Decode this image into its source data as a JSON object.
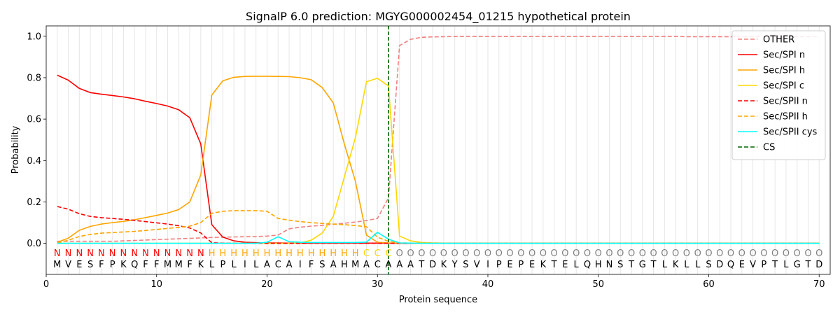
{
  "chart_data": {
    "type": "line",
    "title": "SignalP 6.0 prediction: MGYG000002454_01215 hypothetical protein",
    "xlabel": "Protein sequence",
    "ylabel": "Probability",
    "xlim": [
      0,
      71
    ],
    "ylim": [
      -0.15,
      1.05
    ],
    "xticks": [
      0,
      10,
      20,
      30,
      40,
      50,
      60,
      70
    ],
    "yticks": [
      0.0,
      0.2,
      0.4,
      0.6,
      0.8,
      1.0
    ],
    "grid": "vertical lines at each residue",
    "legend": "top-right",
    "cs_position": 31,
    "sequence": [
      "M",
      "V",
      "E",
      "S",
      "F",
      "P",
      "K",
      "Q",
      "F",
      "F",
      "M",
      "M",
      "F",
      "K",
      "L",
      "P",
      "L",
      "I",
      "L",
      "A",
      "C",
      "A",
      "I",
      "F",
      "S",
      "A",
      "H",
      "M",
      "A",
      "C",
      "A",
      "A",
      "A",
      "T",
      "D",
      "K",
      "Y",
      "S",
      "V",
      "I",
      "P",
      "E",
      "P",
      "E",
      "K",
      "T",
      "E",
      "L",
      "Q",
      "H",
      "N",
      "S",
      "T",
      "G",
      "T",
      "L",
      "K",
      "L",
      "L",
      "S",
      "D",
      "Q",
      "E",
      "V",
      "P",
      "T",
      "L",
      "G",
      "T",
      "D"
    ],
    "labels": [
      "N",
      "N",
      "N",
      "N",
      "N",
      "N",
      "N",
      "N",
      "N",
      "N",
      "N",
      "N",
      "N",
      "N",
      "H",
      "H",
      "H",
      "H",
      "H",
      "H",
      "H",
      "H",
      "H",
      "H",
      "H",
      "H",
      "H",
      "H",
      "C",
      "C",
      "C",
      "O",
      "O",
      "O",
      "O",
      "O",
      "O",
      "O",
      "O",
      "O",
      "O",
      "O",
      "O",
      "O",
      "O",
      "O",
      "O",
      "O",
      "O",
      "O",
      "O",
      "O",
      "O",
      "O",
      "O",
      "O",
      "O",
      "O",
      "O",
      "O",
      "O",
      "O",
      "O",
      "O",
      "O",
      "O",
      "O",
      "O",
      "O",
      "O"
    ],
    "label_colors": {
      "N": "#ff0000",
      "H": "#ffa500",
      "C": "#ffd700",
      "O": "#808080"
    },
    "series": [
      {
        "name": "OTHER",
        "color": "#f08080",
        "dash": "dashed",
        "values": [
          0.01,
          0.01,
          0.01,
          0.01,
          0.01,
          0.01,
          0.012,
          0.014,
          0.016,
          0.018,
          0.02,
          0.022,
          0.024,
          0.026,
          0.028,
          0.03,
          0.031,
          0.032,
          0.033,
          0.035,
          0.04,
          0.07,
          0.078,
          0.083,
          0.087,
          0.092,
          0.097,
          0.103,
          0.11,
          0.12,
          0.22,
          0.955,
          0.985,
          0.995,
          0.997,
          0.998,
          0.999,
          0.999,
          0.999,
          0.999,
          0.999,
          0.999,
          0.999,
          0.999,
          0.999,
          0.999,
          0.999,
          0.999,
          0.999,
          0.999,
          0.999,
          0.999,
          0.999,
          0.999,
          0.999,
          0.999,
          0.999,
          0.998,
          0.998,
          0.998,
          0.998,
          0.998,
          0.998,
          0.998,
          0.998,
          0.998,
          0.998,
          0.998,
          0.998,
          0.998
        ]
      },
      {
        "name": "Sec/SPI n",
        "color": "#ff0000",
        "dash": "solid",
        "values": [
          0.812,
          0.788,
          0.748,
          0.728,
          0.72,
          0.714,
          0.707,
          0.698,
          0.686,
          0.675,
          0.663,
          0.645,
          0.607,
          0.48,
          0.09,
          0.03,
          0.012,
          0.005,
          0.003,
          0.002,
          0.002,
          0.001,
          0.001,
          0.001,
          0.001,
          0.001,
          0.001,
          0.001,
          0.001,
          0.001,
          0.001,
          0.0,
          0.0,
          0.0,
          0.0,
          0.0,
          0.0,
          0.0,
          0.0,
          0.0,
          0.0,
          0.0,
          0.0,
          0.0,
          0.0,
          0.0,
          0.0,
          0.0,
          0.0,
          0.0,
          0.0,
          0.0,
          0.0,
          0.0,
          0.0,
          0.0,
          0.0,
          0.0,
          0.0,
          0.0,
          0.0,
          0.0,
          0.0,
          0.0,
          0.0,
          0.0,
          0.0,
          0.0,
          0.0,
          0.0
        ]
      },
      {
        "name": "Sec/SPI h",
        "color": "#ffa500",
        "dash": "solid",
        "values": [
          0.005,
          0.025,
          0.063,
          0.082,
          0.093,
          0.1,
          0.106,
          0.114,
          0.124,
          0.135,
          0.146,
          0.163,
          0.2,
          0.33,
          0.716,
          0.785,
          0.802,
          0.806,
          0.807,
          0.807,
          0.806,
          0.805,
          0.8,
          0.79,
          0.752,
          0.678,
          0.48,
          0.3,
          0.04,
          0.005,
          0.002,
          0.001,
          0.001,
          0.0,
          0.0,
          0.0,
          0.0,
          0.0,
          0.0,
          0.0,
          0.0,
          0.0,
          0.0,
          0.0,
          0.0,
          0.0,
          0.0,
          0.0,
          0.0,
          0.0,
          0.0,
          0.0,
          0.0,
          0.0,
          0.0,
          0.0,
          0.0,
          0.0,
          0.0,
          0.0,
          0.0,
          0.0,
          0.0,
          0.0,
          0.0,
          0.0,
          0.0,
          0.0,
          0.0,
          0.0
        ]
      },
      {
        "name": "Sec/SPI c",
        "color": "#ffd700",
        "dash": "solid",
        "values": [
          0.0,
          0.0,
          0.0,
          0.0,
          0.0,
          0.0,
          0.0,
          0.0,
          0.0,
          0.0,
          0.0,
          0.0,
          0.0,
          0.0,
          0.0,
          0.0,
          0.0,
          0.0,
          0.0,
          0.0,
          0.0,
          0.0,
          0.002,
          0.015,
          0.05,
          0.13,
          0.32,
          0.51,
          0.78,
          0.797,
          0.76,
          0.035,
          0.012,
          0.004,
          0.002,
          0.001,
          0.0,
          0.0,
          0.0,
          0.0,
          0.0,
          0.0,
          0.0,
          0.0,
          0.0,
          0.0,
          0.0,
          0.0,
          0.0,
          0.0,
          0.0,
          0.0,
          0.0,
          0.0,
          0.0,
          0.0,
          0.0,
          0.0,
          0.0,
          0.0,
          0.0,
          0.0,
          0.0,
          0.0,
          0.0,
          0.0,
          0.0,
          0.0,
          0.0,
          0.0
        ]
      },
      {
        "name": "Sec/SPII n",
        "color": "#ff0000",
        "dash": "dashed",
        "values": [
          0.178,
          0.165,
          0.143,
          0.13,
          0.124,
          0.12,
          0.116,
          0.111,
          0.105,
          0.099,
          0.093,
          0.085,
          0.074,
          0.05,
          0.003,
          0.001,
          0.0,
          0.0,
          0.0,
          0.0,
          0.0,
          0.0,
          0.0,
          0.0,
          0.0,
          0.0,
          0.0,
          0.0,
          0.0,
          0.0,
          0.0,
          0.0,
          0.0,
          0.0,
          0.0,
          0.0,
          0.0,
          0.0,
          0.0,
          0.0,
          0.0,
          0.0,
          0.0,
          0.0,
          0.0,
          0.0,
          0.0,
          0.0,
          0.0,
          0.0,
          0.0,
          0.0,
          0.0,
          0.0,
          0.0,
          0.0,
          0.0,
          0.0,
          0.0,
          0.0,
          0.0,
          0.0,
          0.0,
          0.0,
          0.0,
          0.0,
          0.0,
          0.0,
          0.0,
          0.0
        ]
      },
      {
        "name": "Sec/SPII h",
        "color": "#ffa500",
        "dash": "dashed",
        "values": [
          0.002,
          0.015,
          0.033,
          0.043,
          0.049,
          0.052,
          0.055,
          0.058,
          0.062,
          0.067,
          0.072,
          0.077,
          0.083,
          0.1,
          0.145,
          0.155,
          0.158,
          0.158,
          0.158,
          0.155,
          0.12,
          0.112,
          0.105,
          0.1,
          0.096,
          0.093,
          0.09,
          0.086,
          0.08,
          0.03,
          0.01,
          0.002,
          0.001,
          0.0,
          0.0,
          0.0,
          0.0,
          0.0,
          0.0,
          0.0,
          0.0,
          0.0,
          0.0,
          0.0,
          0.0,
          0.0,
          0.0,
          0.0,
          0.0,
          0.0,
          0.0,
          0.0,
          0.0,
          0.0,
          0.0,
          0.0,
          0.0,
          0.0,
          0.0,
          0.0,
          0.0,
          0.0,
          0.0,
          0.0,
          0.0,
          0.0,
          0.0,
          0.0,
          0.0,
          0.0
        ]
      },
      {
        "name": "Sec/SPII cys",
        "color": "#00ffff",
        "dash": "solid",
        "values": [
          0.0,
          0.0,
          0.0,
          0.0,
          0.0,
          0.0,
          0.0,
          0.0,
          0.0,
          0.0,
          0.0,
          0.0,
          0.0,
          0.0,
          0.0,
          0.0,
          0.0,
          0.0,
          0.0,
          0.005,
          0.032,
          0.008,
          0.005,
          0.004,
          0.004,
          0.004,
          0.004,
          0.004,
          0.006,
          0.053,
          0.02,
          0.002,
          0.001,
          0.0,
          0.0,
          0.0,
          0.0,
          0.0,
          0.0,
          0.0,
          0.0,
          0.0,
          0.0,
          0.0,
          0.0,
          0.0,
          0.0,
          0.0,
          0.0,
          0.0,
          0.0,
          0.0,
          0.0,
          0.0,
          0.0,
          0.0,
          0.0,
          0.0,
          0.0,
          0.0,
          0.0,
          0.0,
          0.0,
          0.0,
          0.0,
          0.0,
          0.0,
          0.0,
          0.0,
          0.0
        ]
      }
    ],
    "cs": {
      "name": "CS",
      "color": "#006400"
    }
  }
}
